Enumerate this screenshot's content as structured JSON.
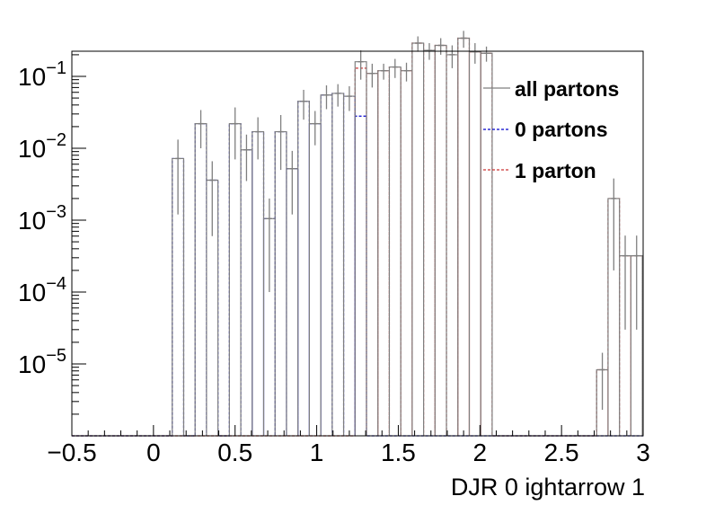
{
  "chart_data": {
    "type": "line",
    "title": "",
    "xlabel": "DJR 0 ightarrow 1",
    "ylabel": "",
    "log_y": true,
    "xlim": [
      -0.5,
      3.0
    ],
    "ylim_log10": [
      -6.0,
      -0.65
    ],
    "bin_width": 0.07,
    "x_ticks": [
      "−0.5",
      "0",
      "0.5",
      "1",
      "1.5",
      "2",
      "2.5",
      "3"
    ],
    "y_ticks": [
      {
        "base": "10",
        "exp": "−5",
        "value": 1e-05
      },
      {
        "base": "10",
        "exp": "−4",
        "value": 0.0001
      },
      {
        "base": "10",
        "exp": "−3",
        "value": 0.001
      },
      {
        "base": "10",
        "exp": "−2",
        "value": 0.01
      },
      {
        "base": "10",
        "exp": "−1",
        "value": 0.1
      }
    ],
    "legend_position": "top-right",
    "series": [
      {
        "name": "all partons",
        "style": "solid",
        "color": "#7f7f7f",
        "bins": [
          {
            "x": 0.15,
            "y": 0.0072,
            "err": 0.006
          },
          {
            "x": 0.29,
            "y": 0.022,
            "err": 0.012
          },
          {
            "x": 0.36,
            "y": 0.0036,
            "err": 0.003
          },
          {
            "x": 0.5,
            "y": 0.022,
            "err": 0.015
          },
          {
            "x": 0.57,
            "y": 0.0095,
            "err": 0.006
          },
          {
            "x": 0.64,
            "y": 0.017,
            "err": 0.01
          },
          {
            "x": 0.71,
            "y": 0.00105,
            "err": 0.00095
          },
          {
            "x": 0.78,
            "y": 0.017,
            "err": 0.012
          },
          {
            "x": 0.85,
            "y": 0.0052,
            "err": 0.004
          },
          {
            "x": 0.92,
            "y": 0.045,
            "err": 0.02
          },
          {
            "x": 0.99,
            "y": 0.022,
            "err": 0.011
          },
          {
            "x": 1.06,
            "y": 0.055,
            "err": 0.02
          },
          {
            "x": 1.13,
            "y": 0.058,
            "err": 0.02
          },
          {
            "x": 1.2,
            "y": 0.053,
            "err": 0.02
          },
          {
            "x": 1.27,
            "y": 0.16,
            "err": 0.07
          },
          {
            "x": 1.34,
            "y": 0.11,
            "err": 0.04
          },
          {
            "x": 1.41,
            "y": 0.12,
            "err": 0.03
          },
          {
            "x": 1.48,
            "y": 0.135,
            "err": 0.04
          },
          {
            "x": 1.55,
            "y": 0.12,
            "err": 0.035
          },
          {
            "x": 1.62,
            "y": 0.29,
            "err": 0.07
          },
          {
            "x": 1.69,
            "y": 0.23,
            "err": 0.06
          },
          {
            "x": 1.76,
            "y": 0.27,
            "err": 0.07
          },
          {
            "x": 1.83,
            "y": 0.2,
            "err": 0.07
          },
          {
            "x": 1.9,
            "y": 0.34,
            "err": 0.09
          },
          {
            "x": 1.97,
            "y": 0.22,
            "err": 0.07
          },
          {
            "x": 2.04,
            "y": 0.21,
            "err": 0.05
          },
          {
            "x": 2.75,
            "y": 8.3e-06,
            "err": 6e-06
          },
          {
            "x": 2.82,
            "y": 0.002,
            "err": 0.0018
          },
          {
            "x": 2.89,
            "y": 0.00032,
            "err": 0.00029
          },
          {
            "x": 2.96,
            "y": 0.00032,
            "err": 0.00029
          }
        ]
      },
      {
        "name": "0 partons",
        "style": "dashed",
        "color": "#0000cc",
        "bins": [
          {
            "x": 0.15,
            "y": 0.0072
          },
          {
            "x": 0.29,
            "y": 0.022
          },
          {
            "x": 0.36,
            "y": 0.0036
          },
          {
            "x": 0.5,
            "y": 0.022
          },
          {
            "x": 0.57,
            "y": 0.0095
          },
          {
            "x": 0.64,
            "y": 0.017
          },
          {
            "x": 0.71,
            "y": 0.00105
          },
          {
            "x": 0.78,
            "y": 0.017
          },
          {
            "x": 0.85,
            "y": 0.0052
          },
          {
            "x": 0.92,
            "y": 0.045
          },
          {
            "x": 0.99,
            "y": 0.022
          },
          {
            "x": 1.06,
            "y": 0.055
          },
          {
            "x": 1.13,
            "y": 0.058
          },
          {
            "x": 1.2,
            "y": 0.053
          },
          {
            "x": 1.27,
            "y": 0.028
          }
        ]
      },
      {
        "name": "1 parton",
        "style": "dashed",
        "color": "#cc3333",
        "bins": [
          {
            "x": 1.27,
            "y": 0.13
          },
          {
            "x": 1.34,
            "y": 0.11
          },
          {
            "x": 1.41,
            "y": 0.12
          },
          {
            "x": 1.48,
            "y": 0.135
          },
          {
            "x": 1.55,
            "y": 0.12
          },
          {
            "x": 1.62,
            "y": 0.29
          },
          {
            "x": 1.69,
            "y": 0.23
          },
          {
            "x": 1.76,
            "y": 0.27
          },
          {
            "x": 1.83,
            "y": 0.2
          },
          {
            "x": 1.9,
            "y": 0.34
          },
          {
            "x": 1.97,
            "y": 0.22
          },
          {
            "x": 2.04,
            "y": 0.21
          },
          {
            "x": 2.75,
            "y": 8.3e-06
          },
          {
            "x": 2.82,
            "y": 0.002
          },
          {
            "x": 2.89,
            "y": 0.00032
          },
          {
            "x": 2.96,
            "y": 0.00032
          }
        ]
      }
    ]
  }
}
